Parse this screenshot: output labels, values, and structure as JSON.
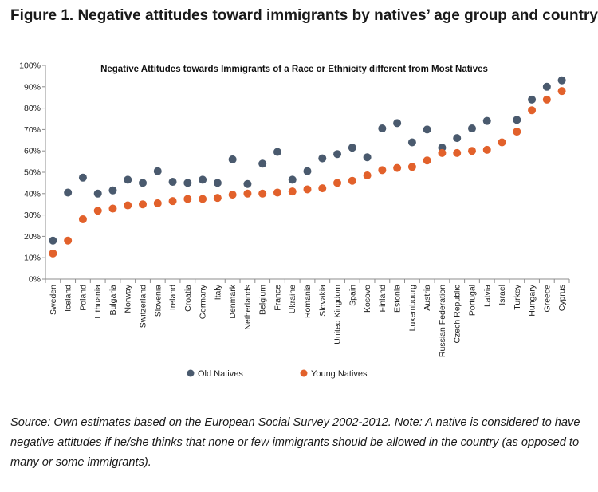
{
  "figure": {
    "title": "Figure 1. Negative attitudes toward immigrants by natives’ age group and country",
    "source_note": "Source: Own estimates based on the European Social Survey 2002-2012. Note: A native is considered to have negative attitudes if he/she thinks that none or few immigrants should be allowed in the country (as opposed to many or some immigrants)."
  },
  "chart_data": {
    "type": "scatter",
    "title": "Negative Attitudes towards Immigrants of a Race or Ethnicity different from Most Natives",
    "xlabel": "",
    "ylabel": "",
    "ylim": [
      0,
      100
    ],
    "y_tick_step": 10,
    "y_tick_format": "percent",
    "grid": false,
    "legend_position": "bottom",
    "categories": [
      "Sweden",
      "Iceland",
      "Poland",
      "Lithuania",
      "Bulgaria",
      "Norway",
      "Switzerland",
      "Slovenia",
      "Ireland",
      "Croatia",
      "Germany",
      "Italy",
      "Denmark",
      "Netherlands",
      "Belgium",
      "France",
      "Ukraine",
      "Romania",
      "Slovakia",
      "United Kingdom",
      "Spain",
      "Kosovo",
      "Finland",
      "Estonia",
      "Luxembourg",
      "Austria",
      "Russian Federation",
      "Czech Republic",
      "Portugal",
      "Latvia",
      "Israel",
      "Turkey",
      "Hungary",
      "Greece",
      "Cyprus"
    ],
    "series": [
      {
        "name": "Old Natives",
        "color": "#4a5a6e",
        "values": [
          18,
          40.5,
          47.5,
          40,
          41.5,
          46.5,
          45,
          50.5,
          45.5,
          45,
          46.5,
          45,
          56,
          44.5,
          54,
          59.5,
          46.5,
          50.5,
          56.5,
          58.5,
          61.5,
          57,
          70.5,
          73,
          64,
          70,
          61.5,
          66,
          70.5,
          74,
          null,
          74.5,
          84,
          90,
          93
        ]
      },
      {
        "name": "Young Natives",
        "color": "#e2612b",
        "values": [
          12,
          18,
          28,
          32,
          33,
          34.5,
          35,
          35.5,
          36.5,
          37.5,
          37.5,
          38,
          39.5,
          40,
          40,
          40.5,
          41,
          42,
          42.5,
          45,
          46,
          48.5,
          51,
          52,
          52.5,
          55.5,
          59,
          59,
          60,
          60.5,
          64,
          69,
          79,
          84,
          88
        ]
      }
    ]
  }
}
